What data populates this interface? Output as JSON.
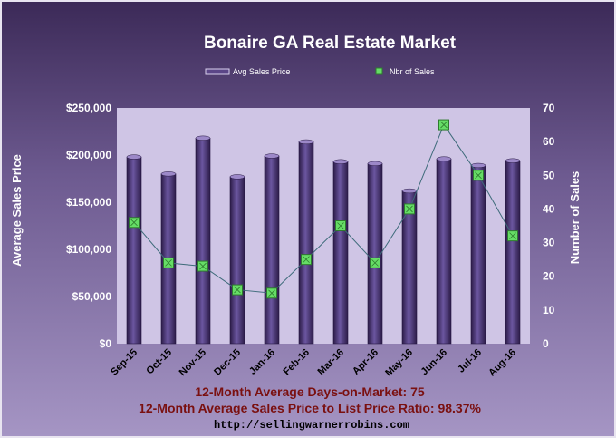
{
  "chart_data": {
    "type": "bar",
    "title": "Bonaire GA Real Estate Market",
    "categories": [
      "Sep-15",
      "Oct-15",
      "Nov-15",
      "Dec-15",
      "Jan-16",
      "Feb-16",
      "Mar-16",
      "Apr-16",
      "May-16",
      "Jun-16",
      "Jul-16",
      "Aug-16"
    ],
    "series": [
      {
        "name": "Avg Sales Price",
        "type": "bar",
        "axis": "left",
        "values": [
          198000,
          180000,
          218000,
          177000,
          199000,
          214000,
          193000,
          191000,
          162000,
          196000,
          189000,
          194000
        ]
      },
      {
        "name": "Nbr of Sales",
        "type": "line",
        "axis": "right",
        "values": [
          36,
          24,
          23,
          16,
          15,
          25,
          35,
          24,
          40,
          65,
          50,
          32
        ]
      }
    ],
    "ylabel": "Average Sales Price",
    "y2label": "Number of Sales",
    "ylim": [
      0,
      250000
    ],
    "y2lim": [
      0,
      70
    ],
    "yticks": [
      "$0",
      "$50,000",
      "$100,000",
      "$150,000",
      "$200,000",
      "$250,000"
    ],
    "y2ticks": [
      "0",
      "10",
      "20",
      "30",
      "40",
      "50",
      "60",
      "70"
    ],
    "legend_position": "top",
    "grid": false
  },
  "footer": {
    "days_on_market": "12-Month Average Days-on-Market: 75",
    "price_ratio": "12-Month Average Sales Price to List Price Ratio: 98.37%",
    "url": "http://sellingwarnerrobins.com"
  },
  "colors": {
    "bar": "#4a3470",
    "plot_area": "#cfc5e5",
    "line": "#3e6b7a",
    "marker": "#66dd66",
    "footer_text": "#7a1010"
  }
}
